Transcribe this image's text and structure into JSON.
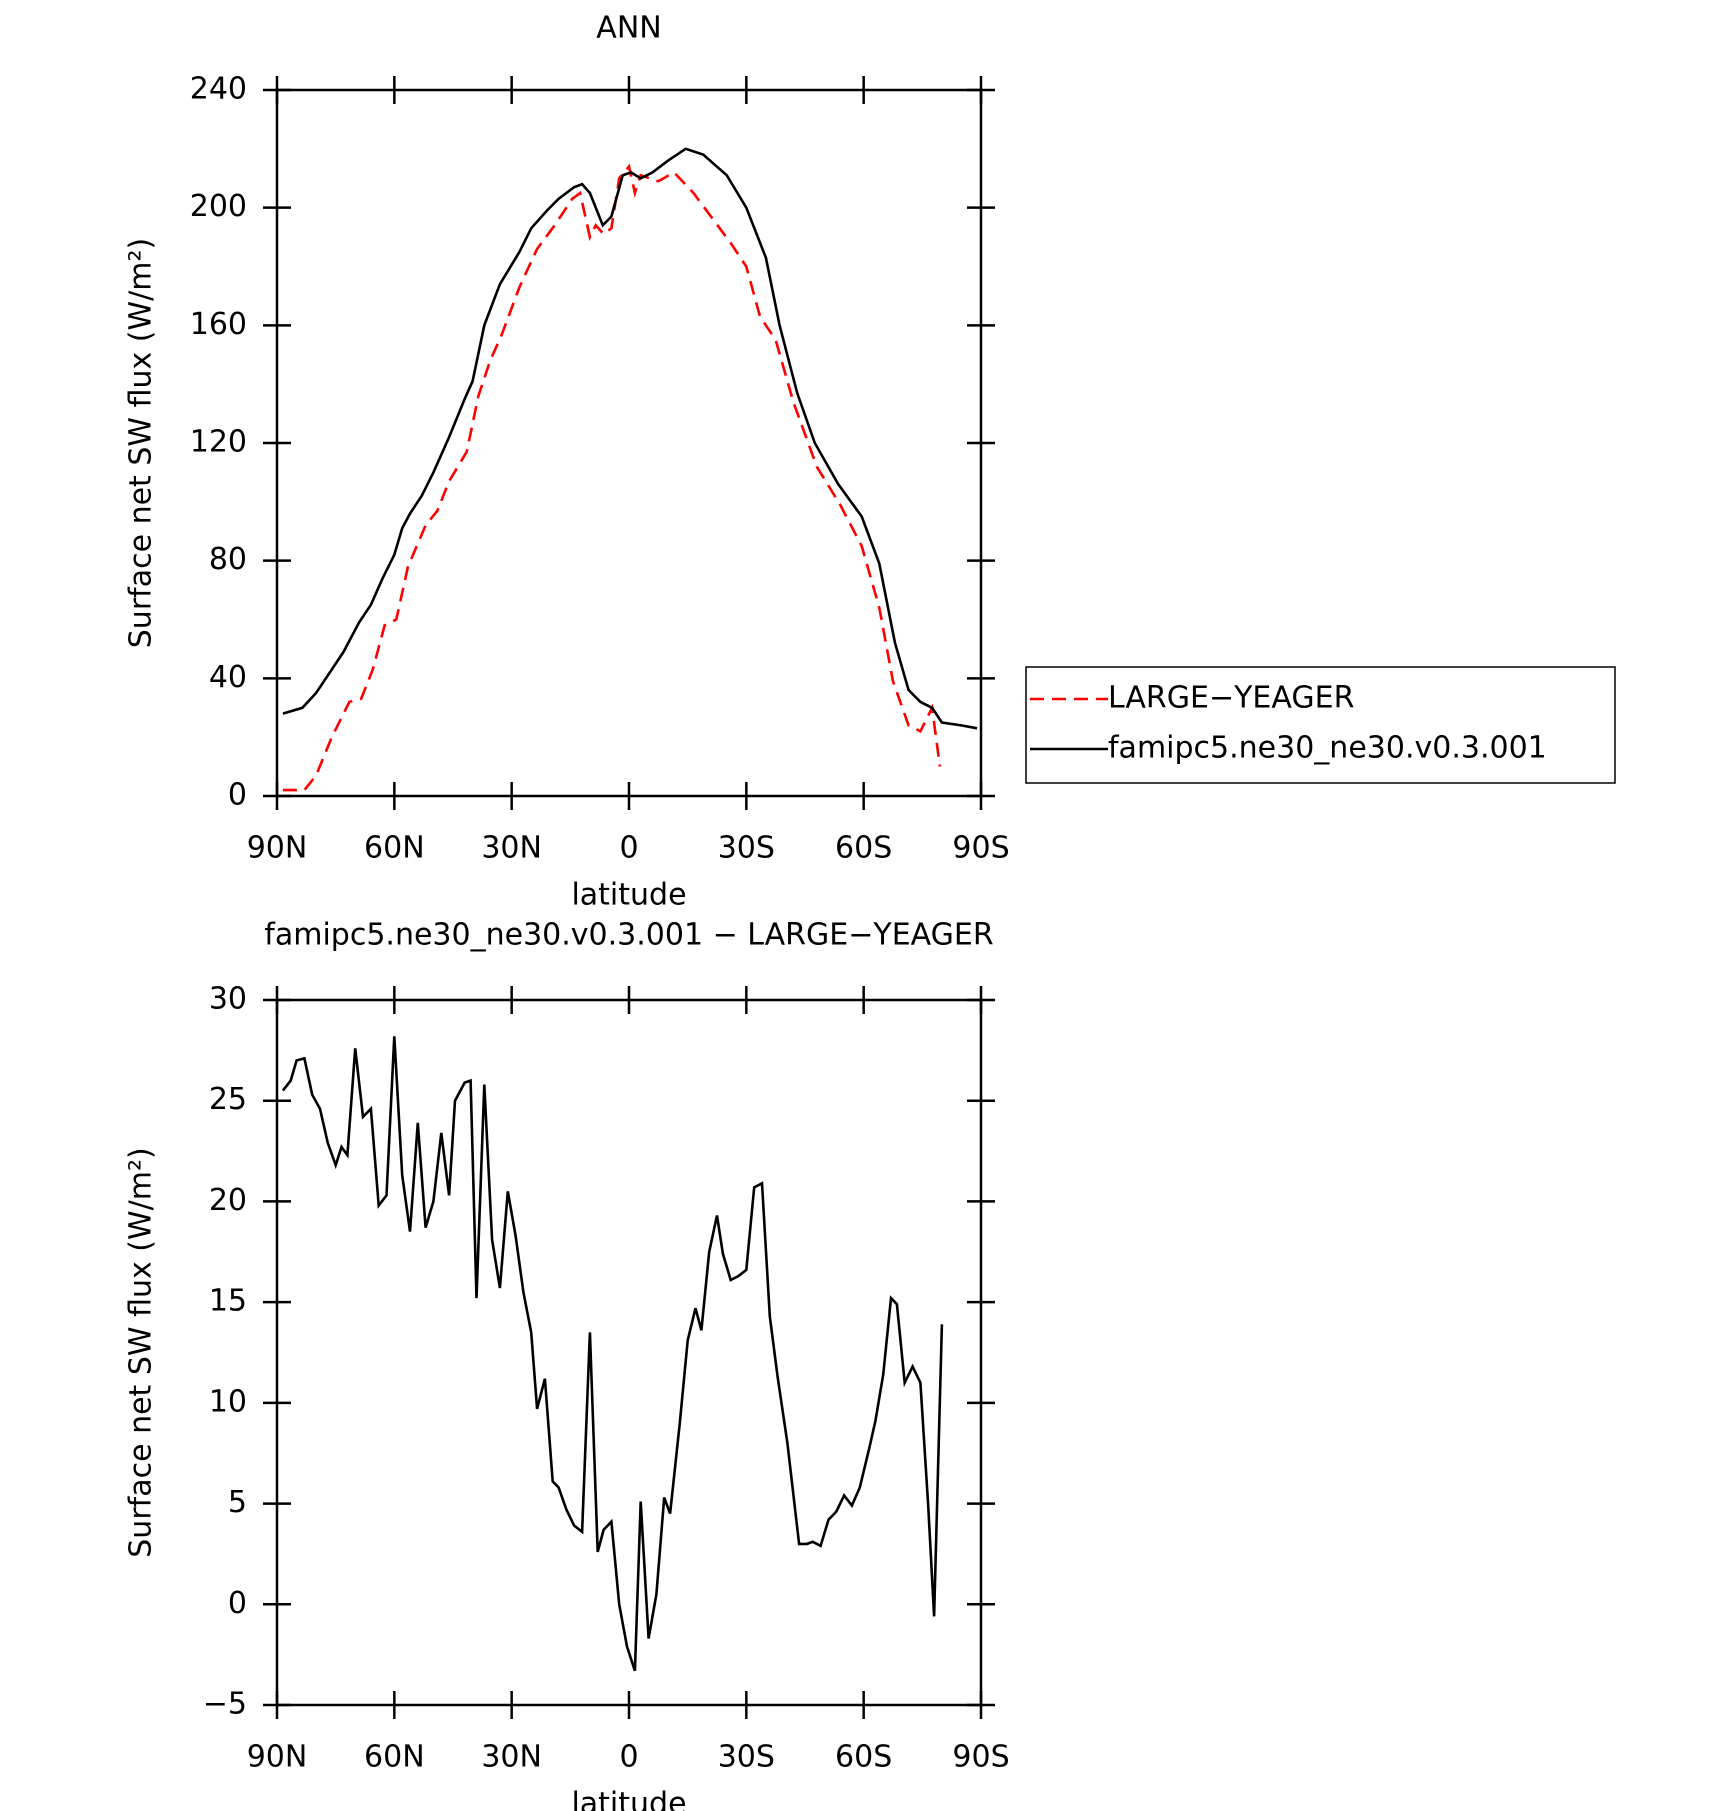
{
  "chart_data": [
    {
      "type": "line",
      "title": "ANN",
      "xlabel": "latitude",
      "ylabel": "Surface net SW flux (W/m²)",
      "xlim": [
        90,
        -90
      ],
      "ylim": [
        0,
        240
      ],
      "xticks": [
        {
          "value": 90,
          "label": "90N"
        },
        {
          "value": 60,
          "label": "60N"
        },
        {
          "value": 30,
          "label": "30N"
        },
        0,
        {
          "value": -30,
          "label": "30S"
        },
        {
          "value": -60,
          "label": "60S"
        },
        {
          "value": -90,
          "label": "90S"
        }
      ],
      "yticks": [
        0,
        40,
        80,
        120,
        160,
        200,
        240
      ],
      "legend": "right",
      "series": [
        {
          "name": "LARGE−YEAGER",
          "color": "#ff0000",
          "dashed": true,
          "x": [
            88.5,
            83,
            80,
            76,
            71.5,
            68.5,
            65.5,
            62.5,
            59.5,
            56.5,
            52,
            49,
            46,
            41.5,
            38.5,
            35.5,
            32.5,
            28,
            23.5,
            19,
            14.5,
            12.5,
            10,
            8.5,
            6.5,
            4.5,
            2.5,
            0,
            -1.5,
            -3,
            -7.5,
            -11.5,
            -16.5,
            -21.5,
            -26,
            -30,
            -33.5,
            -37.5,
            -42,
            -48,
            -54,
            -59.5,
            -64,
            -67.5,
            -71.5,
            -74.5,
            -77.5,
            -79.5
          ],
          "values": [
            2,
            2,
            7,
            20,
            32,
            33,
            43,
            58,
            60,
            78,
            92,
            97,
            107,
            117,
            136,
            148,
            157,
            173,
            186,
            194,
            203,
            205,
            190,
            194,
            191,
            193,
            210,
            214,
            205,
            211,
            209,
            212,
            205,
            196,
            188,
            180,
            163,
            155,
            134,
            112,
            99,
            85,
            64,
            39,
            24,
            22,
            30,
            10
          ]
        },
        {
          "name": "famipc5.ne30_ne30.v0.3.001",
          "color": "#000000",
          "dashed": false,
          "x": [
            88.5,
            83.5,
            80,
            76,
            73,
            69,
            66,
            63,
            60,
            58,
            56,
            53,
            50,
            46,
            42,
            40,
            37,
            33,
            28,
            25,
            21,
            18,
            14,
            12,
            10,
            6.7,
            4.5,
            1.6,
            -0.5,
            -3,
            -6,
            -10,
            -14.5,
            -19,
            -25,
            -30,
            -35,
            -38.5,
            -43,
            -47.5,
            -53.5,
            -59.5,
            -64,
            -68,
            -71.5,
            -74.5,
            -77.5,
            -80,
            -85,
            -89
          ],
          "values": [
            28,
            30,
            35,
            43,
            49,
            59,
            65,
            74,
            82,
            91,
            96,
            102,
            110,
            122,
            135,
            141,
            160,
            174,
            185,
            193,
            199,
            203,
            207,
            208,
            205,
            194,
            197,
            211,
            212,
            210,
            212,
            216,
            220,
            218,
            211,
            200,
            183,
            160,
            137,
            120,
            106,
            95,
            79,
            52,
            36,
            32,
            30,
            25,
            24,
            23
          ]
        }
      ]
    },
    {
      "type": "line",
      "title": "famipc5.ne30_ne30.v0.3.001 − LARGE−YEAGER",
      "xlabel": "latitude",
      "ylabel": "Surface net SW flux (W/m²)",
      "xlim": [
        90,
        -90
      ],
      "ylim": [
        -5,
        30
      ],
      "xticks": [
        {
          "value": 90,
          "label": "90N"
        },
        {
          "value": 60,
          "label": "60N"
        },
        {
          "value": 30,
          "label": "30N"
        },
        0,
        {
          "value": -30,
          "label": "30S"
        },
        {
          "value": -60,
          "label": "60S"
        },
        {
          "value": -90,
          "label": "90S"
        }
      ],
      "yticks": [
        {
          "value": -5,
          "label": "−5"
        },
        0,
        5,
        10,
        15,
        20,
        25,
        30
      ],
      "series": [
        {
          "color": "#000000",
          "dashed": false,
          "x": [
            88.5,
            86.5,
            85,
            83,
            81,
            79,
            77,
            75,
            73.5,
            72,
            70,
            68,
            66,
            64,
            62,
            60,
            58,
            56,
            54,
            52,
            50,
            48,
            46,
            44.5,
            42,
            40.5,
            39,
            37,
            35,
            33,
            31,
            29,
            27,
            25,
            23.5,
            21.5,
            19.5,
            18,
            16,
            14,
            12,
            10,
            8,
            6.5,
            4.5,
            2.5,
            0.5,
            -1.5,
            -3,
            -5,
            -7,
            -9,
            -10.5,
            -13,
            -15,
            -17,
            -18.5,
            -20.5,
            -22.5,
            -24,
            -26,
            -28,
            -30,
            -32,
            -34,
            -36,
            -38,
            -40.5,
            -43.5,
            -45.5,
            -47,
            -49,
            -51,
            -53,
            -55,
            -57,
            -59,
            -61.5,
            -63,
            -65,
            -67,
            -68.5,
            -70.5,
            -72.5,
            -74.5,
            -76.5,
            -78,
            -80
          ],
          "values": [
            25.5,
            26,
            27,
            27.1,
            25.3,
            24.6,
            22.9,
            21.8,
            22.7,
            22.3,
            27.6,
            24.2,
            24.6,
            19.8,
            20.3,
            28.2,
            21.3,
            18.5,
            23.9,
            18.7,
            20,
            23.4,
            20.3,
            25,
            25.9,
            26,
            15.2,
            25.8,
            18.1,
            15.7,
            20.5,
            18.3,
            15.5,
            13.5,
            9.7,
            11.2,
            6.1,
            5.8,
            4.7,
            3.9,
            3.6,
            13.5,
            2.6,
            3.7,
            4.1,
            0,
            -2.1,
            -3.3,
            5.1,
            -1.7,
            0.5,
            5.3,
            4.5,
            9,
            13.1,
            14.7,
            13.6,
            17.5,
            19.3,
            17.4,
            16.1,
            16.3,
            16.6,
            20.7,
            20.9,
            14.3,
            11.3,
            8,
            3,
            3,
            3.1,
            2.9,
            4.2,
            4.6,
            5.4,
            4.9,
            5.8,
            7.8,
            9.1,
            11.4,
            15.2,
            14.9,
            11,
            11.8,
            11,
            4.9,
            -0.6,
            13.9
          ]
        }
      ]
    }
  ]
}
